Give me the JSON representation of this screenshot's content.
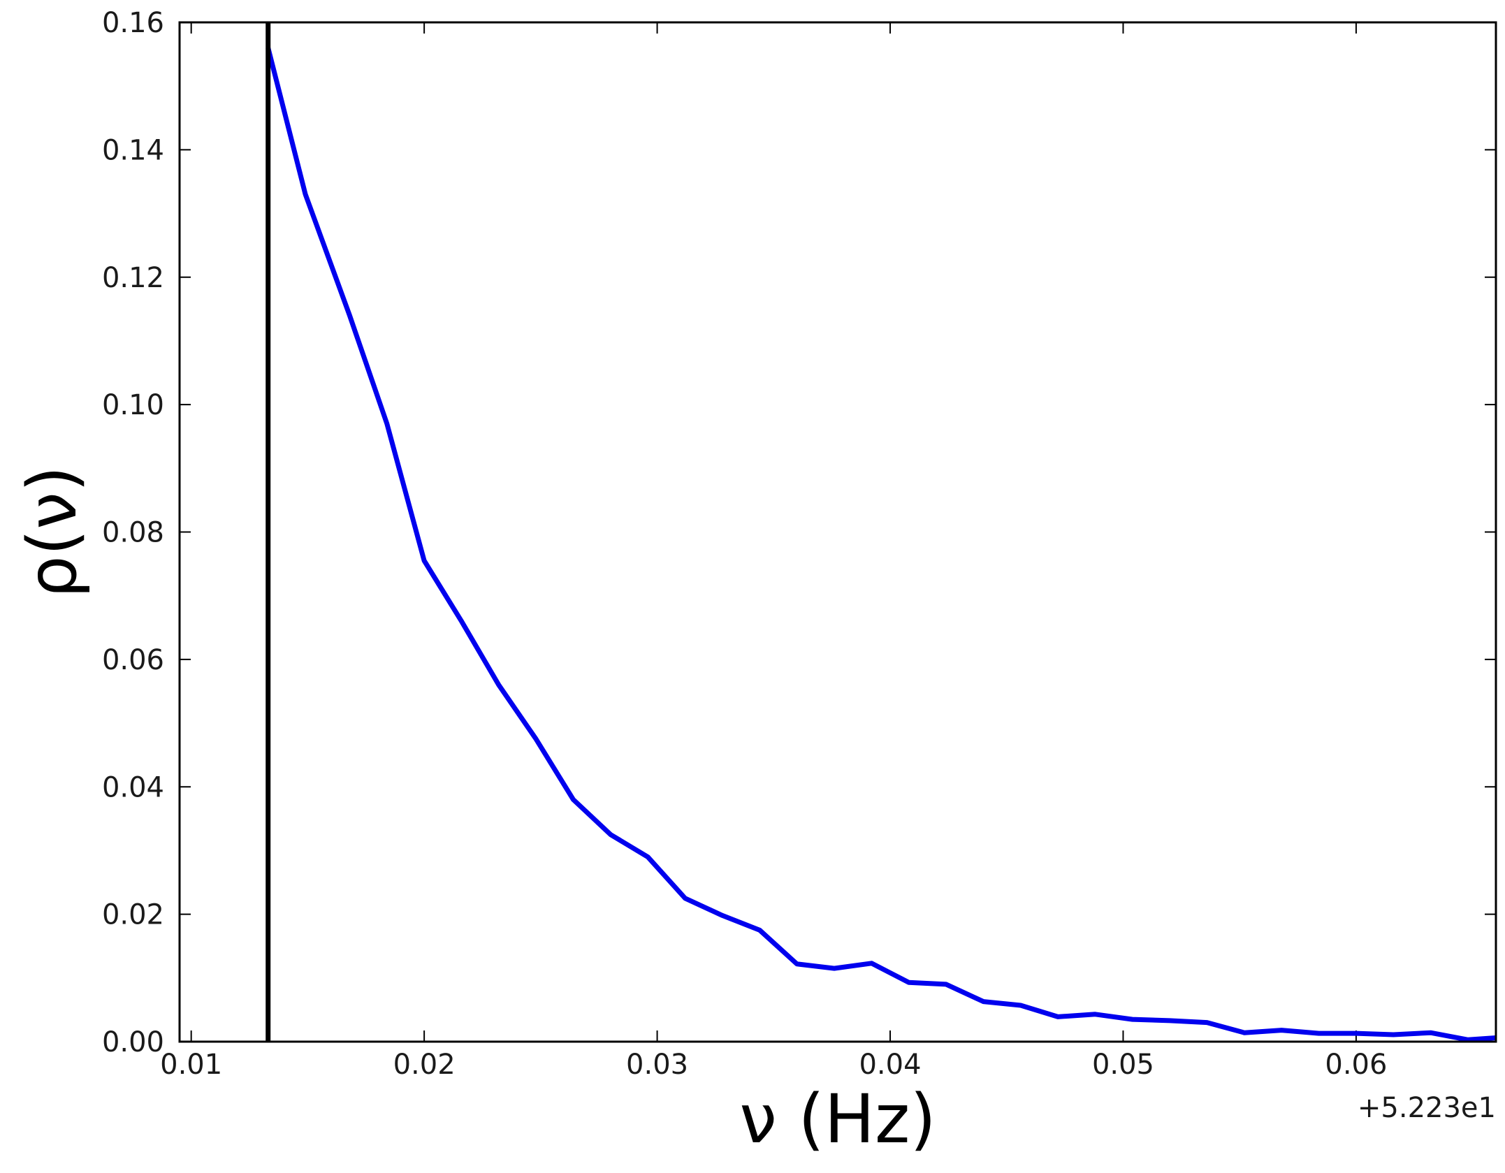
{
  "chart_data": {
    "type": "line",
    "title": "",
    "xlabel": "ν (Hz)",
    "ylabel": "ρ(ν)",
    "x_offset_label": "+5.223e1",
    "xlim": [
      0.0095,
      0.066
    ],
    "ylim": [
      0.0,
      0.16
    ],
    "xticks": [
      0.01,
      0.02,
      0.03,
      0.04,
      0.05,
      0.06
    ],
    "xtick_labels": [
      "0.01",
      "0.02",
      "0.03",
      "0.04",
      "0.05",
      "0.06"
    ],
    "yticks": [
      0.0,
      0.02,
      0.04,
      0.06,
      0.08,
      0.1,
      0.12,
      0.14,
      0.16
    ],
    "ytick_labels": [
      "0.00",
      "0.02",
      "0.04",
      "0.06",
      "0.08",
      "0.10",
      "0.12",
      "0.14",
      "0.16"
    ],
    "grid": false,
    "vline_x": 0.0133,
    "colors": {
      "series": "#0000ee",
      "vline": "#000000",
      "axes": "#000000"
    },
    "series": [
      {
        "x": [
          0.0133,
          0.0149,
          0.0168,
          0.0184,
          0.02,
          0.0216,
          0.0232,
          0.0248,
          0.0264,
          0.028,
          0.0296,
          0.0312,
          0.0328,
          0.0344,
          0.036,
          0.0376,
          0.0392,
          0.0408,
          0.0424,
          0.044,
          0.0456,
          0.0472,
          0.0488,
          0.0504,
          0.052,
          0.0536,
          0.0552,
          0.0568,
          0.0584,
          0.06,
          0.0616,
          0.0632,
          0.0648,
          0.066
        ],
        "y": [
          0.156,
          0.133,
          0.114,
          0.097,
          0.0755,
          0.066,
          0.056,
          0.0475,
          0.038,
          0.0325,
          0.029,
          0.0225,
          0.0198,
          0.0175,
          0.0122,
          0.0115,
          0.0123,
          0.0093,
          0.009,
          0.0063,
          0.0057,
          0.0039,
          0.0043,
          0.0035,
          0.0033,
          0.003,
          0.0014,
          0.0018,
          0.0013,
          0.0013,
          0.0011,
          0.0014,
          0.0003,
          0.0006
        ]
      }
    ]
  }
}
